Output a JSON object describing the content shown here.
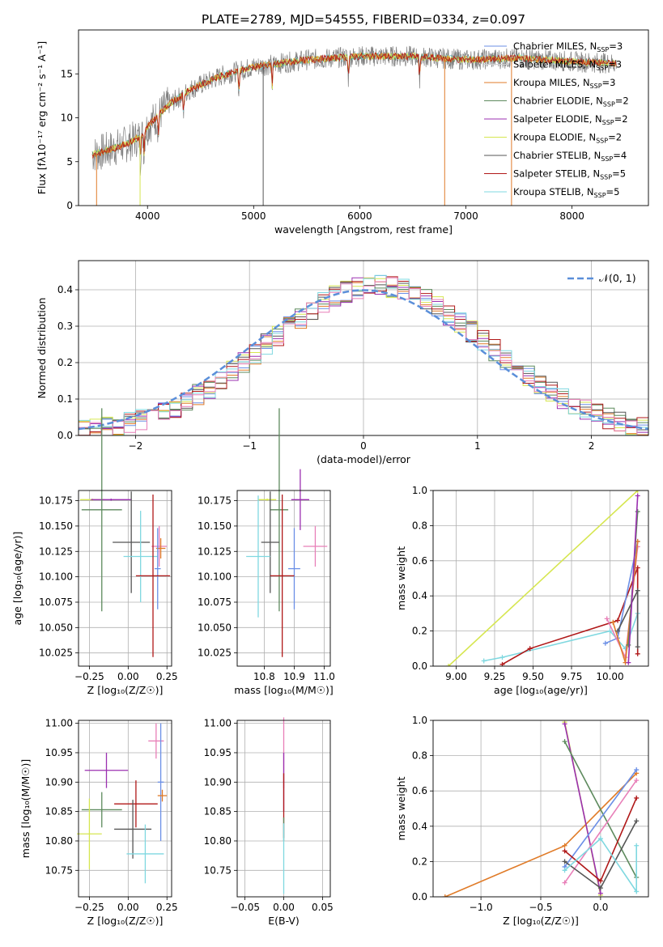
{
  "title": "PLATE=2789, MJD=54555, FIBERID=0334, z=0.097",
  "colors": {
    "Chabrier MILES": "#6b8fe6",
    "Salpeter MILES": "#cfcfcf",
    "Kroupa MILES": "#e07b28",
    "Chabrier ELODIE": "#5d8a5d",
    "Salpeter ELODIE": "#9b30b0",
    "Kroupa ELODIE": "#d6e650",
    "Chabrier STELIB": "#555555",
    "Salpeter STELIB": "#b01818",
    "Kroupa STELIB": "#7fd8e0",
    "Salpeter MILES (pink)": "#e87fb8",
    "normal": "#5b8fd9"
  },
  "chart_data": [
    {
      "type": "line",
      "panel": "spectrum",
      "title": "PLATE=2789, MJD=54555, FIBERID=0334, z=0.097",
      "xlabel": "wavelength [Angstrom, rest frame]",
      "ylabel": "Flux [fλ10⁻¹⁷ erg cm⁻² s⁻¹ A⁻¹]",
      "xlim": [
        3350,
        8720
      ],
      "ylim": [
        0,
        20
      ],
      "xticks": [
        "4000",
        "5000",
        "6000",
        "7000",
        "8000"
      ],
      "yticks": [
        "0",
        "5",
        "10",
        "15"
      ],
      "legend": "top-right",
      "legend_entries": [
        {
          "name": "Chabrier MILES",
          "nssp": "3"
        },
        {
          "name": "Salpeter MILES",
          "nssp": "3"
        },
        {
          "name": "Kroupa MILES",
          "nssp": "3"
        },
        {
          "name": "Chabrier ELODIE",
          "nssp": "2"
        },
        {
          "name": "Salpeter ELODIE",
          "nssp": "2"
        },
        {
          "name": "Kroupa ELODIE",
          "nssp": "2"
        },
        {
          "name": "Chabrier STELIB",
          "nssp": "4"
        },
        {
          "name": "Salpeter STELIB",
          "nssp": "5"
        },
        {
          "name": "Kroupa STELIB",
          "nssp": "5"
        }
      ],
      "continuum": [
        [
          3480,
          5.8
        ],
        [
          3600,
          6.2
        ],
        [
          3800,
          7.0
        ],
        [
          3950,
          8.0
        ],
        [
          4000,
          9.0
        ],
        [
          4200,
          11.5
        ],
        [
          4400,
          13.2
        ],
        [
          4700,
          14.8
        ],
        [
          5000,
          15.8
        ],
        [
          5500,
          16.6
        ],
        [
          6000,
          17.0
        ],
        [
          6500,
          17.0
        ],
        [
          7000,
          16.6
        ],
        [
          7500,
          16.8
        ],
        [
          8000,
          16.4
        ],
        [
          8400,
          16.2
        ]
      ]
    },
    {
      "type": "histogram",
      "panel": "residuals",
      "xlabel": "(data-model)/error",
      "ylabel": "Normed distribution",
      "xlim": [
        -2.5,
        2.5
      ],
      "ylim": [
        0,
        0.48
      ],
      "xticks": [
        "−2",
        "−1",
        "0",
        "1",
        "2"
      ],
      "yticks": [
        "0.0",
        "0.1",
        "0.2",
        "0.3",
        "0.4"
      ],
      "grid": true,
      "legend": "top-right",
      "legend_entries": [
        {
          "name": "𝒩(0, 1)"
        }
      ],
      "bin_width": 0.1
    },
    {
      "type": "scatter",
      "panel": "age_vs_Z",
      "xlabel": "Z [log₁₀(Z/Z☉)]",
      "ylabel": "age  [log₁₀(age/yr)]",
      "xlim": [
        -0.32,
        0.28
      ],
      "ylim": [
        10.012,
        10.185
      ],
      "xticks": [
        "−0.25",
        "0.00",
        "0.25"
      ],
      "yticks": [
        "10.025",
        "10.050",
        "10.075",
        "10.100",
        "10.125",
        "10.150",
        "10.175"
      ],
      "grid": true,
      "points": [
        {
          "s": "Kroupa ELODIE",
          "x": -0.23,
          "y": 10.176,
          "xerr": 0.08,
          "yerr": 0.001
        },
        {
          "s": "Salpeter ELODIE",
          "x": -0.11,
          "y": 10.176,
          "xerr": 0.13,
          "yerr": 0.001
        },
        {
          "s": "Chabrier ELODIE",
          "x": -0.17,
          "y": 10.166,
          "xerr": 0.13,
          "yerr": 0.1
        },
        {
          "s": "Chabrier STELIB",
          "x": 0.02,
          "y": 10.134,
          "xerr": 0.12,
          "yerr": 0.05
        },
        {
          "s": "Salpeter MILES (pink)",
          "x": 0.2,
          "y": 10.13,
          "xerr": 0.05,
          "yerr": 0.02
        },
        {
          "s": "Kroupa MILES",
          "x": 0.21,
          "y": 10.128,
          "xerr": 0.03,
          "yerr": 0.01
        },
        {
          "s": "Kroupa STELIB",
          "x": 0.08,
          "y": 10.12,
          "xerr": 0.11,
          "yerr": 0.045
        },
        {
          "s": "Chabrier MILES",
          "x": 0.19,
          "y": 10.108,
          "xerr": 0.02,
          "yerr": 0.04
        },
        {
          "s": "Salpeter STELIB",
          "x": 0.16,
          "y": 10.101,
          "xerr": 0.11,
          "yerr": 0.08
        }
      ]
    },
    {
      "type": "scatter",
      "panel": "age_vs_mass",
      "xlabel": "mass [log₁₀(M/M☉)]",
      "ylabel": "",
      "xlim": [
        10.71,
        11.02
      ],
      "ylim": [
        10.012,
        10.185
      ],
      "xticks": [
        "10.8",
        "10.9",
        "11.0"
      ],
      "yticks": [
        "10.025",
        "10.050",
        "10.075",
        "10.100",
        "10.125",
        "10.150",
        "10.175"
      ],
      "grid": true,
      "points": [
        {
          "s": "Kroupa ELODIE",
          "x": 10.81,
          "y": 10.176,
          "xerr": 0.03,
          "yerr": 0.001
        },
        {
          "s": "Salpeter ELODIE",
          "x": 10.92,
          "y": 10.176,
          "xerr": 0.03,
          "yerr": 0.03
        },
        {
          "s": "Chabrier ELODIE",
          "x": 10.85,
          "y": 10.166,
          "xerr": 0.03,
          "yerr": 0.1
        },
        {
          "s": "Chabrier STELIB",
          "x": 10.82,
          "y": 10.134,
          "xerr": 0.03,
          "yerr": 0.05
        },
        {
          "s": "Salpeter MILES (pink)",
          "x": 10.97,
          "y": 10.13,
          "xerr": 0.04,
          "yerr": 0.02
        },
        {
          "s": "Kroupa STELIB",
          "x": 10.78,
          "y": 10.12,
          "xerr": 0.04,
          "yerr": 0.06
        },
        {
          "s": "Chabrier MILES",
          "x": 10.9,
          "y": 10.108,
          "xerr": 0.02,
          "yerr": 0.04
        },
        {
          "s": "Salpeter STELIB",
          "x": 10.86,
          "y": 10.101,
          "xerr": 0.04,
          "yerr": 0.08
        }
      ]
    },
    {
      "type": "line",
      "panel": "weight_vs_age",
      "xlabel": "age  [log₁₀(age/yr)]",
      "ylabel": "mass weight",
      "xlim": [
        8.85,
        10.25
      ],
      "ylim": [
        0,
        1
      ],
      "xticks": [
        "9.00",
        "9.25",
        "9.50",
        "9.75",
        "10.00"
      ],
      "yticks": [
        "0.0",
        "0.2",
        "0.4",
        "0.6",
        "0.8",
        "1.0"
      ],
      "grid": true
    },
    {
      "type": "scatter",
      "panel": "mass_vs_Z",
      "xlabel": "Z [log₁₀(Z/Z☉)]",
      "ylabel": "mass [log₁₀(M/M☉)]",
      "xlim": [
        -0.32,
        0.28
      ],
      "ylim": [
        10.705,
        11.005
      ],
      "xticks": [
        "−0.25",
        "0.00",
        "0.25"
      ],
      "yticks": [
        "10.75",
        "10.80",
        "10.85",
        "10.90",
        "10.95",
        "11.00"
      ],
      "grid": true,
      "points": [
        {
          "s": "Salpeter MILES (pink)",
          "x": 0.18,
          "y": 10.97,
          "xerr": 0.05,
          "yerr": 0.03
        },
        {
          "s": "Salpeter ELODIE",
          "x": -0.14,
          "y": 10.92,
          "xerr": 0.14,
          "yerr": 0.03
        },
        {
          "s": "Chabrier MILES",
          "x": 0.21,
          "y": 10.9,
          "xerr": 0.02,
          "yerr": 0.1
        },
        {
          "s": "Kroupa MILES",
          "x": 0.22,
          "y": 10.877,
          "xerr": 0.03,
          "yerr": 0.01
        },
        {
          "s": "Salpeter STELIB",
          "x": 0.05,
          "y": 10.863,
          "xerr": 0.14,
          "yerr": 0.04
        },
        {
          "s": "Chabrier ELODIE",
          "x": -0.17,
          "y": 10.853,
          "xerr": 0.13,
          "yerr": 0.03
        },
        {
          "s": "Chabrier STELIB",
          "x": 0.03,
          "y": 10.82,
          "xerr": 0.12,
          "yerr": 0.05
        },
        {
          "s": "Kroupa ELODIE",
          "x": -0.25,
          "y": 10.812,
          "xerr": 0.08,
          "yerr": 0.06
        },
        {
          "s": "Kroupa STELIB",
          "x": 0.11,
          "y": 10.778,
          "xerr": 0.12,
          "yerr": 0.05
        }
      ]
    },
    {
      "type": "scatter",
      "panel": "mass_vs_ebv",
      "xlabel": "E(B-V)",
      "ylabel": "",
      "xlim": [
        -0.06,
        0.06
      ],
      "ylim": [
        10.705,
        11.005
      ],
      "xticks": [
        "−0.05",
        "0.00",
        "0.05"
      ],
      "yticks": [
        "10.75",
        "10.80",
        "10.85",
        "10.90",
        "10.95",
        "11.00"
      ],
      "grid": true,
      "points": [
        {
          "s": "Salpeter MILES (pink)",
          "x": 0.0,
          "y": 10.95,
          "xerr": 0.0,
          "yerr": 0.06
        },
        {
          "s": "Salpeter ELODIE",
          "x": 0.0,
          "y": 10.9,
          "xerr": 0.0,
          "yerr": 0.05
        },
        {
          "s": "Salpeter STELIB",
          "x": 0.0,
          "y": 10.86,
          "xerr": 0.0,
          "yerr": 0.055
        },
        {
          "s": "Chabrier ELODIE",
          "x": 0.0,
          "y": 10.82,
          "xerr": 0.0,
          "yerr": 0.02
        },
        {
          "s": "Kroupa STELIB",
          "x": 0.0,
          "y": 10.77,
          "xerr": 0.0,
          "yerr": 0.06
        }
      ]
    },
    {
      "type": "line",
      "panel": "weight_vs_Z",
      "xlabel": "Z [log₁₀(Z/Z☉)]",
      "ylabel": "mass weight",
      "xlim": [
        -1.4,
        0.4
      ],
      "ylim": [
        0,
        1
      ],
      "xticks": [
        "−1.0",
        "−0.5",
        "0.0"
      ],
      "yticks": [
        "0.0",
        "0.2",
        "0.4",
        "0.6",
        "0.8",
        "1.0"
      ],
      "grid": true
    }
  ]
}
